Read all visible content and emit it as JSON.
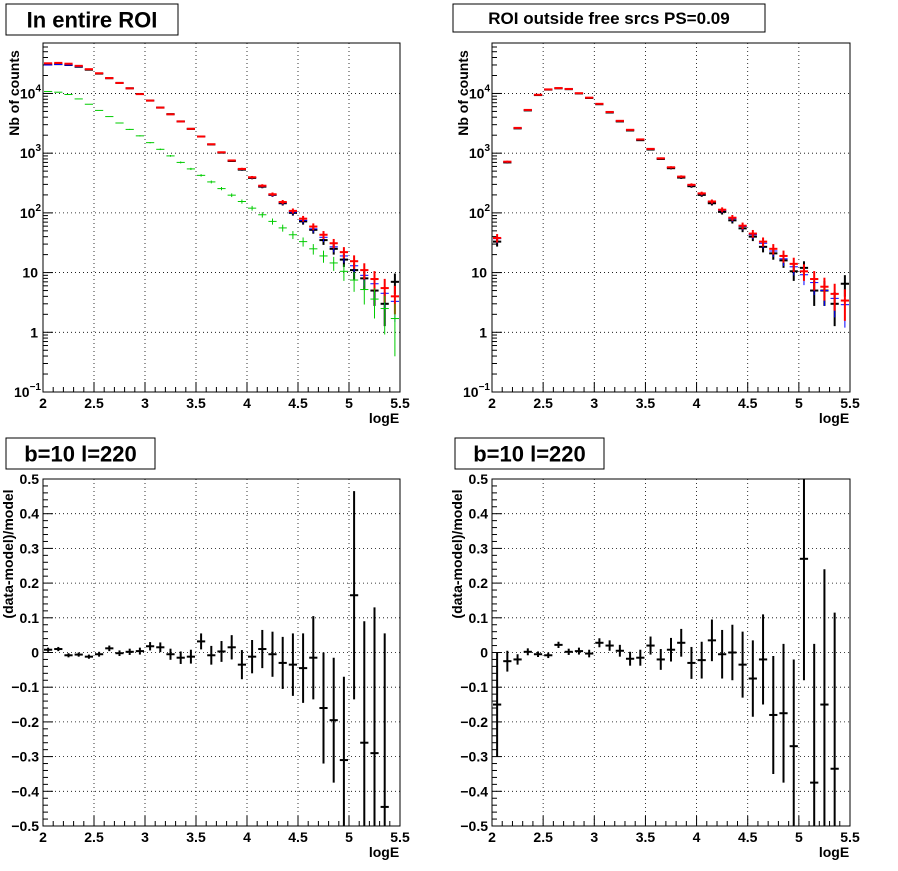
{
  "chart_data": [
    {
      "type": "scatter",
      "title": "In entire ROI",
      "xlabel": "logE",
      "ylabel": "Nb of counts",
      "xlim": [
        2,
        5.5
      ],
      "ylim": [
        0.1,
        70000
      ],
      "yscale": "log",
      "grid": true,
      "x_ticks": [
        "2",
        "2.5",
        "3",
        "3.5",
        "4",
        "4.5",
        "5",
        "5.5"
      ],
      "y_ticks": [
        {
          "value": 0.1,
          "base": "10",
          "exp": "−1"
        },
        {
          "value": 1,
          "base": "1",
          "exp": ""
        },
        {
          "value": 10,
          "base": "10",
          "exp": ""
        },
        {
          "value": 100,
          "base": "10",
          "exp": "2"
        },
        {
          "value": 1000,
          "base": "10",
          "exp": "3"
        },
        {
          "value": 10000,
          "base": "10",
          "exp": "4"
        }
      ],
      "bin_width": 0.1,
      "series": [
        {
          "color": "#000000",
          "style": "errorbar",
          "lw": 2,
          "x": [
            2.05,
            2.15,
            2.25,
            2.35,
            2.45,
            2.55,
            2.65,
            2.75,
            2.85,
            2.95,
            3.05,
            3.15,
            3.25,
            3.35,
            3.45,
            3.55,
            3.65,
            3.75,
            3.85,
            3.95,
            4.05,
            4.15,
            4.25,
            4.35,
            4.45,
            4.55,
            4.65,
            4.75,
            4.85,
            4.95,
            5.05,
            5.15,
            5.25,
            5.35,
            5.45
          ],
          "y": [
            30500,
            31000,
            30000,
            28000,
            25000,
            21500,
            18000,
            15000,
            12200,
            9800,
            7600,
            5800,
            4500,
            3400,
            2550,
            1900,
            1400,
            1020,
            740,
            530,
            385,
            275,
            200,
            145,
            100,
            72,
            52,
            35,
            25,
            16.5,
            11,
            8,
            5,
            3,
            7
          ]
        },
        {
          "color": "#0000ff",
          "style": "errorbar",
          "lw": 1,
          "x": [
            2.05,
            2.15,
            2.25,
            2.35,
            2.45,
            2.55,
            2.65,
            2.75,
            2.85,
            2.95,
            3.05,
            3.15,
            3.25,
            3.35,
            3.45,
            3.55,
            3.65,
            3.75,
            3.85,
            3.95,
            4.05,
            4.15,
            4.25,
            4.35,
            4.45,
            4.55,
            4.65,
            4.75,
            4.85,
            4.95,
            5.05,
            5.15,
            5.25,
            5.35,
            5.45
          ],
          "y": [
            30000,
            30600,
            29900,
            28100,
            25200,
            21600,
            18000,
            15000,
            12100,
            9700,
            7550,
            5770,
            4450,
            3380,
            2540,
            1890,
            1400,
            1030,
            750,
            540,
            390,
            280,
            200,
            148,
            103,
            75,
            54,
            39,
            27,
            19,
            13,
            9,
            6.5,
            4.5,
            3.3
          ]
        },
        {
          "color": "#ff0000",
          "style": "errorbar",
          "lw": 2,
          "x": [
            2.05,
            2.15,
            2.25,
            2.35,
            2.45,
            2.55,
            2.65,
            2.75,
            2.85,
            2.95,
            3.05,
            3.15,
            3.25,
            3.35,
            3.45,
            3.55,
            3.65,
            3.75,
            3.85,
            3.95,
            4.05,
            4.15,
            4.25,
            4.35,
            4.45,
            4.55,
            4.65,
            4.75,
            4.85,
            4.95,
            5.05,
            5.15,
            5.25,
            5.35,
            5.45
          ],
          "y": [
            32000,
            32500,
            31500,
            29000,
            25500,
            21800,
            18100,
            15000,
            12200,
            9750,
            7600,
            5800,
            4480,
            3400,
            2560,
            1900,
            1410,
            1035,
            755,
            545,
            395,
            285,
            205,
            152,
            108,
            80,
            59,
            43,
            31,
            22,
            15.5,
            11,
            7.8,
            5.5,
            4
          ]
        },
        {
          "color": "#00cc00",
          "style": "errorbar",
          "lw": 1,
          "x": [
            2.05,
            2.15,
            2.25,
            2.35,
            2.45,
            2.55,
            2.65,
            2.75,
            2.85,
            2.95,
            3.05,
            3.15,
            3.25,
            3.35,
            3.45,
            3.55,
            3.65,
            3.75,
            3.85,
            3.95,
            4.05,
            4.15,
            4.25,
            4.35,
            4.45,
            4.55,
            4.65,
            4.75,
            4.85,
            4.95,
            5.05,
            5.15,
            5.25,
            5.35,
            5.45
          ],
          "y": [
            10800,
            10500,
            9600,
            8100,
            6600,
            5200,
            4100,
            3200,
            2500,
            1950,
            1500,
            1160,
            900,
            700,
            545,
            425,
            330,
            255,
            198,
            155,
            120,
            93,
            72,
            56,
            43,
            33,
            25,
            19,
            14.5,
            10.5,
            7.5,
            5.2,
            3.6,
            2.5,
            1.7
          ]
        }
      ]
    },
    {
      "type": "scatter",
      "title": "ROI outside free srcs PS=0.09",
      "xlabel": "logE",
      "ylabel": "Nb of counts",
      "xlim": [
        2,
        5.5
      ],
      "ylim": [
        0.1,
        70000
      ],
      "yscale": "log",
      "grid": true,
      "x_ticks": [
        "2",
        "2.5",
        "3",
        "3.5",
        "4",
        "4.5",
        "5",
        "5.5"
      ],
      "y_ticks": [
        {
          "value": 0.1,
          "base": "10",
          "exp": "−1"
        },
        {
          "value": 1,
          "base": "1",
          "exp": ""
        },
        {
          "value": 10,
          "base": "10",
          "exp": ""
        },
        {
          "value": 100,
          "base": "10",
          "exp": "2"
        },
        {
          "value": 1000,
          "base": "10",
          "exp": "3"
        },
        {
          "value": 10000,
          "base": "10",
          "exp": "4"
        }
      ],
      "bin_width": 0.1,
      "series": [
        {
          "color": "#000000",
          "style": "errorbar",
          "lw": 2,
          "x": [
            2.05,
            2.15,
            2.25,
            2.35,
            2.45,
            2.55,
            2.65,
            2.75,
            2.85,
            2.95,
            3.05,
            3.15,
            3.25,
            3.35,
            3.45,
            3.55,
            3.65,
            3.75,
            3.85,
            3.95,
            4.05,
            4.15,
            4.25,
            4.35,
            4.45,
            4.55,
            4.65,
            4.75,
            4.85,
            4.95,
            5.05,
            5.15,
            5.25,
            5.35,
            5.45
          ],
          "y": [
            33,
            700,
            2600,
            5200,
            9400,
            11600,
            12200,
            11800,
            10000,
            8400,
            6600,
            4800,
            3400,
            2400,
            1650,
            1150,
            800,
            560,
            390,
            280,
            200,
            145,
            104,
            75,
            55,
            40,
            27,
            21,
            16,
            10.5,
            12,
            5,
            5,
            3,
            6.5
          ]
        },
        {
          "color": "#0000ff",
          "style": "errorbar",
          "lw": 1,
          "x": [
            2.05,
            2.15,
            2.25,
            2.35,
            2.45,
            2.55,
            2.65,
            2.75,
            2.85,
            2.95,
            3.05,
            3.15,
            3.25,
            3.35,
            3.45,
            3.55,
            3.65,
            3.75,
            3.85,
            3.95,
            4.05,
            4.15,
            4.25,
            4.35,
            4.45,
            4.55,
            4.65,
            4.75,
            4.85,
            4.95,
            5.05,
            5.15,
            5.25,
            5.35,
            5.45
          ],
          "y": [
            37,
            710,
            2620,
            5250,
            9450,
            11650,
            12250,
            11850,
            10050,
            8450,
            6650,
            4850,
            3450,
            2440,
            1680,
            1170,
            815,
            575,
            400,
            290,
            208,
            152,
            110,
            80,
            59,
            43,
            31,
            23,
            17,
            12.5,
            9.2,
            6.8,
            5,
            3.7,
            2.9
          ]
        },
        {
          "color": "#ff0000",
          "style": "errorbar",
          "lw": 2,
          "x": [
            2.05,
            2.15,
            2.25,
            2.35,
            2.45,
            2.55,
            2.65,
            2.75,
            2.85,
            2.95,
            3.05,
            3.15,
            3.25,
            3.35,
            3.45,
            3.55,
            3.65,
            3.75,
            3.85,
            3.95,
            4.05,
            4.15,
            4.25,
            4.35,
            4.45,
            4.55,
            4.65,
            4.75,
            4.85,
            4.95,
            5.05,
            5.15,
            5.25,
            5.35,
            5.45
          ],
          "y": [
            38,
            720,
            2650,
            5300,
            9500,
            11700,
            12300,
            11900,
            10100,
            8500,
            6700,
            4900,
            3480,
            2460,
            1700,
            1180,
            820,
            580,
            405,
            295,
            212,
            155,
            113,
            83,
            61,
            45,
            33,
            25,
            19,
            14,
            10.5,
            7.8,
            5.8,
            4.4,
            3.4
          ]
        }
      ]
    },
    {
      "type": "scatter",
      "title": "b=10 l=220",
      "xlabel": "logE",
      "ylabel": "(data-model)/model",
      "xlim": [
        2,
        5.5
      ],
      "ylim": [
        -0.5,
        0.5
      ],
      "yscale": "linear",
      "grid": true,
      "x_ticks": [
        "2",
        "2.5",
        "3",
        "3.5",
        "4",
        "4.5",
        "5",
        "5.5"
      ],
      "y_ticks": [
        "−0.5",
        "−0.4",
        "−0.3",
        "−0.2",
        "−0.1",
        "0",
        "0.1",
        "0.2",
        "0.3",
        "0.4",
        "0.5"
      ],
      "bin_width": 0.1,
      "series": [
        {
          "color": "#000000",
          "style": "errorbar",
          "lw": 2,
          "x": [
            2.05,
            2.15,
            2.25,
            2.35,
            2.45,
            2.55,
            2.65,
            2.75,
            2.85,
            2.95,
            3.05,
            3.15,
            3.25,
            3.35,
            3.45,
            3.55,
            3.65,
            3.75,
            3.85,
            3.95,
            4.05,
            4.15,
            4.25,
            4.35,
            4.45,
            4.55,
            4.65,
            4.75,
            4.85,
            4.95,
            5.05,
            5.15,
            5.25,
            5.35
          ],
          "y": [
            0.008,
            0.01,
            -0.008,
            -0.006,
            -0.012,
            -0.005,
            0.012,
            -0.002,
            0.002,
            0.004,
            0.018,
            0.015,
            -0.005,
            -0.015,
            -0.012,
            0.032,
            -0.008,
            0.003,
            0.015,
            -0.035,
            -0.012,
            0.01,
            -0.005,
            -0.03,
            -0.035,
            -0.045,
            -0.015,
            -0.16,
            -0.195,
            -0.31,
            0.165,
            -0.26,
            -0.29,
            -0.445
          ],
          "err": [
            0.006,
            0.006,
            0.006,
            0.006,
            0.006,
            0.007,
            0.008,
            0.008,
            0.009,
            0.01,
            0.012,
            0.014,
            0.016,
            0.018,
            0.02,
            0.023,
            0.027,
            0.03,
            0.035,
            0.042,
            0.048,
            0.055,
            0.065,
            0.075,
            0.09,
            0.1,
            0.12,
            0.16,
            0.18,
            0.24,
            0.3,
            0.35,
            0.42,
            0.5
          ]
        }
      ]
    },
    {
      "type": "scatter",
      "title": "b=10 l=220",
      "xlabel": "logE",
      "ylabel": "(data-model)/model",
      "xlim": [
        2,
        5.5
      ],
      "ylim": [
        -0.5,
        0.5
      ],
      "yscale": "linear",
      "grid": true,
      "x_ticks": [
        "2",
        "2.5",
        "3",
        "3.5",
        "4",
        "4.5",
        "5",
        "5.5"
      ],
      "y_ticks": [
        "−0.5",
        "−0.4",
        "−0.3",
        "−0.2",
        "−0.1",
        "0",
        "0.1",
        "0.2",
        "0.3",
        "0.4",
        "0.5"
      ],
      "bin_width": 0.1,
      "series": [
        {
          "color": "#000000",
          "style": "errorbar",
          "lw": 2,
          "x": [
            2.05,
            2.15,
            2.25,
            2.35,
            2.45,
            2.55,
            2.65,
            2.75,
            2.85,
            2.95,
            3.05,
            3.15,
            3.25,
            3.35,
            3.45,
            3.55,
            3.65,
            3.75,
            3.85,
            3.95,
            4.05,
            4.15,
            4.25,
            4.35,
            4.45,
            4.55,
            4.65,
            4.75,
            4.85,
            4.95,
            5.05,
            5.15,
            5.25,
            5.35
          ],
          "y": [
            -0.15,
            -0.025,
            -0.02,
            0.002,
            -0.005,
            -0.008,
            0.022,
            0.002,
            0.004,
            -0.003,
            0.028,
            0.02,
            0.005,
            -0.018,
            -0.015,
            0.02,
            -0.02,
            0.008,
            0.028,
            -0.03,
            -0.022,
            0.035,
            -0.005,
            0.0,
            -0.035,
            -0.075,
            -0.02,
            -0.18,
            -0.175,
            -0.27,
            0.27,
            -0.375,
            -0.15,
            -0.335
          ],
          "err": [
            0.15,
            0.03,
            0.015,
            0.01,
            0.008,
            0.008,
            0.009,
            0.009,
            0.01,
            0.011,
            0.013,
            0.015,
            0.017,
            0.02,
            0.023,
            0.026,
            0.03,
            0.034,
            0.04,
            0.046,
            0.053,
            0.06,
            0.07,
            0.08,
            0.095,
            0.11,
            0.13,
            0.17,
            0.2,
            0.25,
            0.35,
            0.4,
            0.39,
            0.45
          ]
        }
      ]
    }
  ]
}
